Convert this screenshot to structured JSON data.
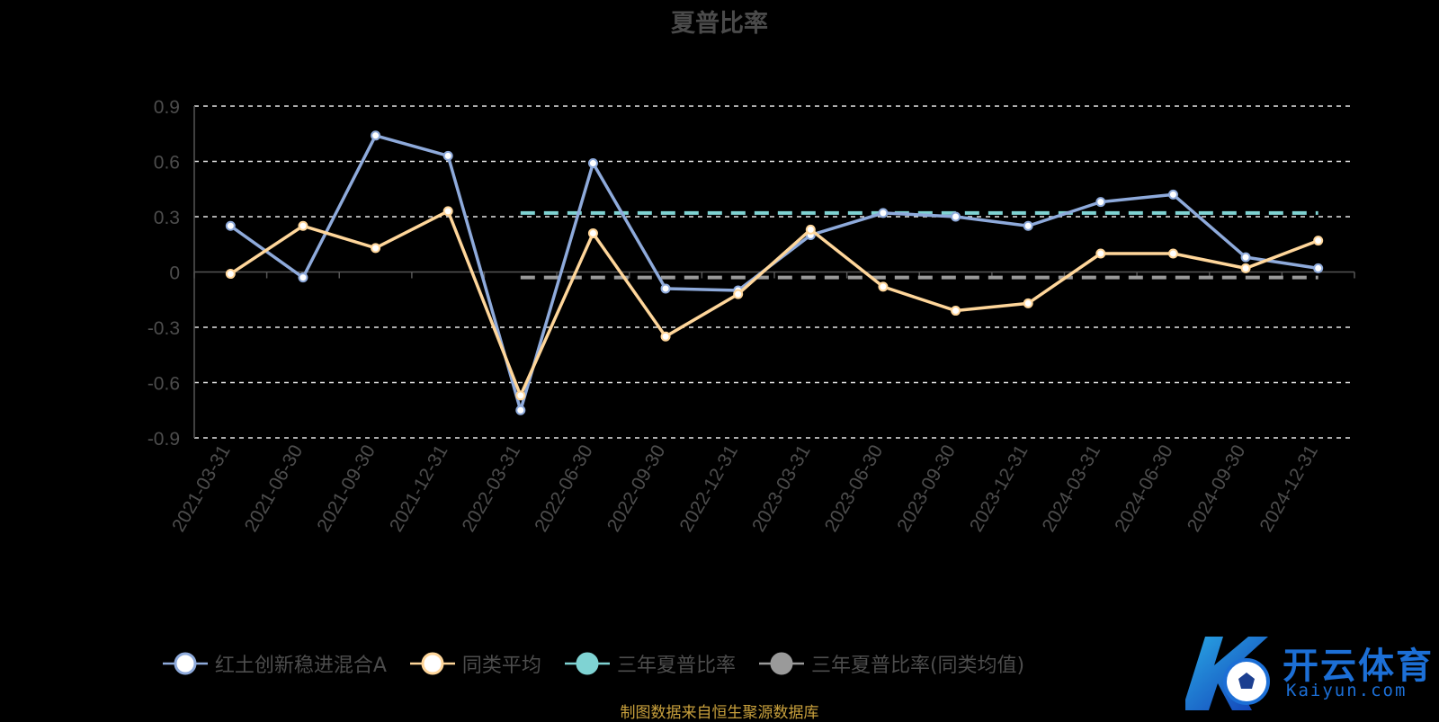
{
  "chart_data": {
    "type": "line",
    "title": "夏普比率",
    "categories": [
      "2021-03-31",
      "2021-06-30",
      "2021-09-30",
      "2021-12-31",
      "2022-03-31",
      "2022-06-30",
      "2022-09-30",
      "2022-12-31",
      "2023-03-31",
      "2023-06-30",
      "2023-09-30",
      "2023-12-31",
      "2024-03-31",
      "2024-06-30",
      "2024-09-30",
      "2024-12-31"
    ],
    "ylim": [
      -0.9,
      0.9
    ],
    "yticks": [
      "0.9",
      "0.6",
      "0.3",
      "0",
      "-0.3",
      "-0.6",
      "-0.9"
    ],
    "grid": true,
    "legend_position": "bottom",
    "series": [
      {
        "name": "红土创新稳进混合A",
        "color": "#8eaadb",
        "values": [
          0.25,
          -0.03,
          0.74,
          0.63,
          -0.75,
          0.59,
          -0.09,
          -0.1,
          0.2,
          0.32,
          0.3,
          0.25,
          0.38,
          0.42,
          0.08,
          0.02
        ]
      },
      {
        "name": "同类平均",
        "color": "#ffd69a",
        "values": [
          -0.01,
          0.25,
          0.13,
          0.33,
          -0.67,
          0.21,
          -0.35,
          -0.12,
          0.23,
          -0.08,
          -0.21,
          -0.17,
          0.1,
          0.1,
          0.02,
          0.17
        ]
      },
      {
        "name": "三年夏普比率",
        "color": "#7fd3d3",
        "style": "dashed",
        "from_index": 4,
        "value": 0.32
      },
      {
        "name": "三年夏普比率(同类均值)",
        "color": "#9a9a9a",
        "style": "dashed",
        "from_index": 4,
        "value": -0.03
      }
    ]
  },
  "source_note": "制图数据来自恒生聚源数据库",
  "watermark": {
    "brand": "开云体育",
    "site": "Kaiyun.com",
    "icon": "k-soccer-logo-icon"
  }
}
